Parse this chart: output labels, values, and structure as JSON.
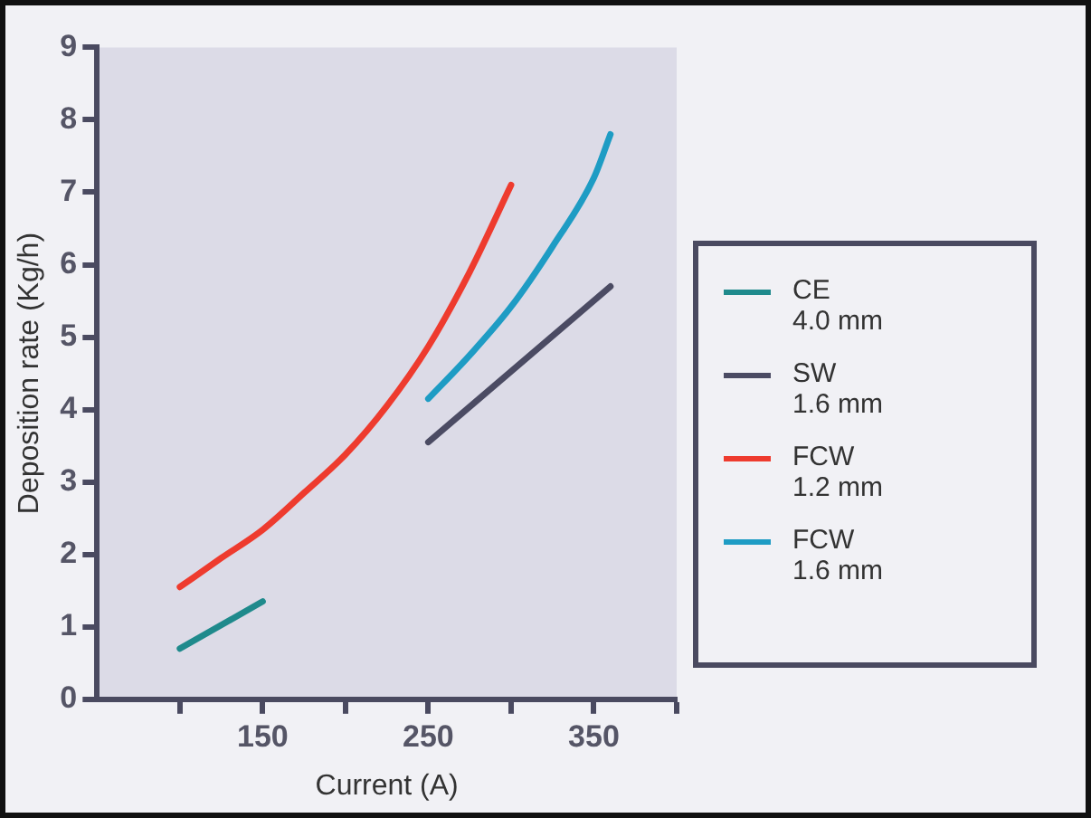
{
  "chart_data": {
    "type": "line",
    "xlabel": "Current (A)",
    "ylabel": "Deposition rate (Kg/h)",
    "xlim": [
      50,
      400
    ],
    "xticks": [
      {
        "value": 100,
        "label": null
      },
      150,
      {
        "value": 200,
        "label": null
      },
      250,
      {
        "value": 300,
        "label": null
      },
      350,
      {
        "value": 400,
        "label": null
      }
    ],
    "ylim": [
      0,
      9
    ],
    "yticks": [
      0,
      1,
      2,
      3,
      4,
      5,
      6,
      7,
      8,
      9
    ],
    "grid": false,
    "legend": "right",
    "marker": "none",
    "line_style": "solid",
    "series": [
      {
        "name": "CE 4.0 mm",
        "color": "#1f8a8c",
        "x": [
          100,
          150
        ],
        "values": [
          0.7,
          1.35
        ]
      },
      {
        "name": "SW 1.6 mm",
        "color": "#4b4b63",
        "x": [
          250,
          360
        ],
        "values": [
          3.55,
          5.7
        ]
      },
      {
        "name": "FCW 1.2 mm",
        "color": "#ee3b2e",
        "x": [
          100,
          125,
          150,
          175,
          200,
          225,
          250,
          275,
          300
        ],
        "values": [
          1.55,
          1.95,
          2.34,
          2.85,
          3.38,
          4.05,
          4.87,
          5.9,
          7.1
        ]
      },
      {
        "name": "FCW 1.6 mm",
        "color": "#1e9cc4",
        "x": [
          250,
          275,
          300,
          325,
          350,
          360
        ],
        "values": [
          4.15,
          4.75,
          5.42,
          6.25,
          7.2,
          7.8
        ]
      }
    ]
  }
}
